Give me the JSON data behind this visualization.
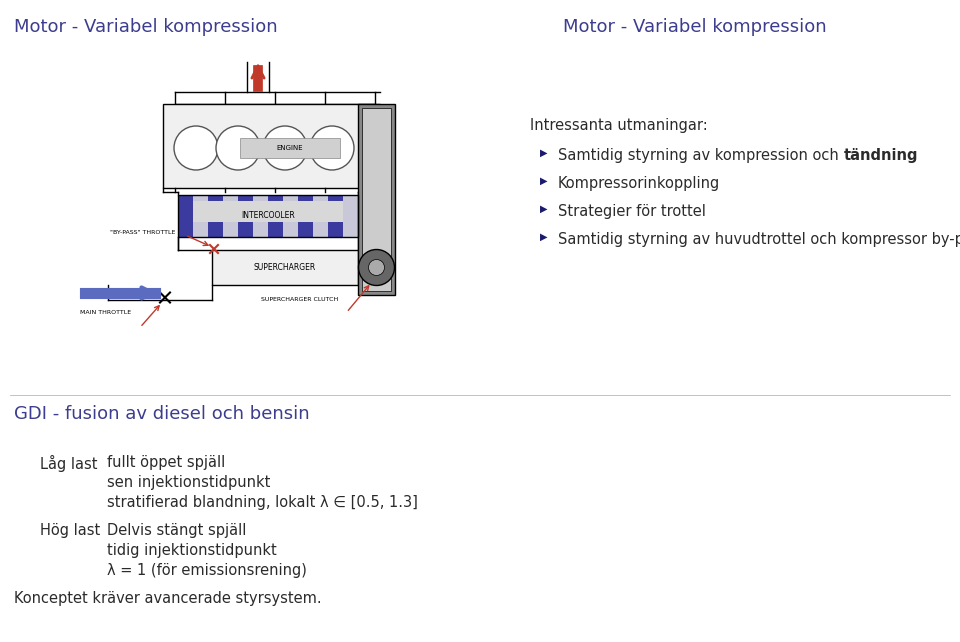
{
  "title_left": "Motor - Variabel kompression",
  "title_right": "Motor - Variabel kompression",
  "title_color": "#3d3d8f",
  "title_fontsize": 13,
  "bg_color": "#ffffff",
  "right_intro": "Intressanta utmaningar:",
  "right_bullets": [
    "Samtidig styrning av kompression och tändning",
    "Kompressorinkoppling",
    "Strategier för trottel",
    "Samtidig styrning av huvudtrottel och kompressor by-pass"
  ],
  "bold_word": "tändning",
  "bottom_title": "GDI - fusion av diesel och bensin",
  "low_load_label": "Låg last",
  "high_load_label": "Hög last",
  "concept_label": "Konceptet kräver avancerade styrsystem.",
  "low_load_lines": [
    "fullt öppet spjäll",
    "sen injektionstidpunkt",
    "stratifierad blandning, lokalt λ ∈ [0.5, 1.3]"
  ],
  "high_load_lines": [
    "Delvis stängt spjäll",
    "tidig injektionstidpunkt",
    "λ = 1 (för emissionsrening)"
  ],
  "text_color": "#2b2b2b",
  "bullet_color": "#1a1a6e",
  "engine_label": "ENGINE",
  "intercooler_label": "INTERCOOLER",
  "bypass_label": "\"BY-PASS\" THROTTLE",
  "supercharger_label": "SUPERCHARGER",
  "supercharger_clutch_label": "SUPERCHARGER CLUTCH",
  "main_throttle_label": "MAIN THROTTLE",
  "red_color": "#c0392b",
  "blue_arrow_color": "#5b6bbf",
  "dark_blue": "#1a1a6e",
  "intercooler_stripe_color": "#3a3a9f",
  "intercooler_fill": "#c8c8d8"
}
